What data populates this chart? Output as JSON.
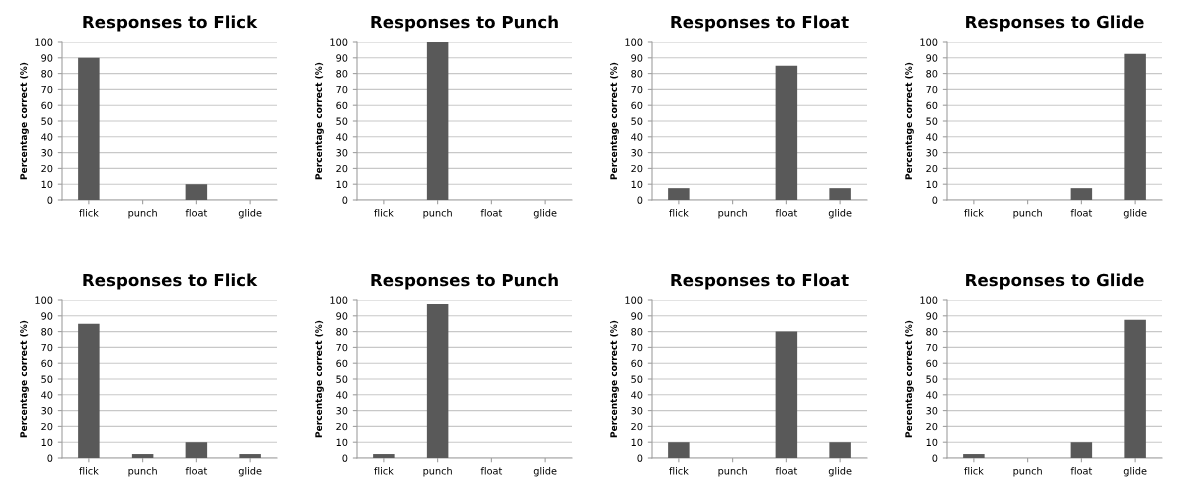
{
  "chart_data": [
    {
      "type": "bar",
      "title": "Responses to Flick",
      "ylabel": "Percentage correct (%)",
      "categories": [
        "flick",
        "punch",
        "float",
        "glide"
      ],
      "values": [
        90,
        0,
        10,
        0
      ],
      "color": "#595959",
      "ylim": [
        0,
        100
      ],
      "yticks": [
        0,
        10,
        20,
        30,
        40,
        50,
        60,
        70,
        80,
        90,
        100
      ],
      "grid": "y"
    },
    {
      "type": "bar",
      "title": "Responses to Punch",
      "ylabel": "Percentage correct (%)",
      "categories": [
        "flick",
        "punch",
        "float",
        "glide"
      ],
      "values": [
        0,
        100,
        0,
        0
      ],
      "color": "#595959",
      "ylim": [
        0,
        100
      ],
      "yticks": [
        0,
        10,
        20,
        30,
        40,
        50,
        60,
        70,
        80,
        90,
        100
      ],
      "grid": "y"
    },
    {
      "type": "bar",
      "title": "Responses to Float",
      "ylabel": "Percentage correct (%)",
      "categories": [
        "flick",
        "punch",
        "float",
        "glide"
      ],
      "values": [
        7.5,
        0,
        85,
        7.5
      ],
      "color": "#595959",
      "ylim": [
        0,
        100
      ],
      "yticks": [
        0,
        10,
        20,
        30,
        40,
        50,
        60,
        70,
        80,
        90,
        100
      ],
      "grid": "y"
    },
    {
      "type": "bar",
      "title": "Responses to Glide",
      "ylabel": "Percentage correct (%)",
      "categories": [
        "flick",
        "punch",
        "float",
        "glide"
      ],
      "values": [
        0,
        0,
        7.5,
        92.5
      ],
      "color": "#595959",
      "ylim": [
        0,
        100
      ],
      "yticks": [
        0,
        10,
        20,
        30,
        40,
        50,
        60,
        70,
        80,
        90,
        100
      ],
      "grid": "y"
    },
    {
      "type": "bar",
      "title": "Responses to Flick",
      "ylabel": "Percentage correct (%)",
      "categories": [
        "flick",
        "punch",
        "float",
        "glide"
      ],
      "values": [
        85,
        2.5,
        10,
        2.5
      ],
      "color": "#595959",
      "ylim": [
        0,
        100
      ],
      "yticks": [
        0,
        10,
        20,
        30,
        40,
        50,
        60,
        70,
        80,
        90,
        100
      ],
      "grid": "y"
    },
    {
      "type": "bar",
      "title": "Responses to Punch",
      "ylabel": "Percentage correct (%)",
      "categories": [
        "flick",
        "punch",
        "float",
        "glide"
      ],
      "values": [
        2.5,
        97.5,
        0,
        0
      ],
      "color": "#595959",
      "ylim": [
        0,
        100
      ],
      "yticks": [
        0,
        10,
        20,
        30,
        40,
        50,
        60,
        70,
        80,
        90,
        100
      ],
      "grid": "y"
    },
    {
      "type": "bar",
      "title": "Responses to Float",
      "ylabel": "Percentage correct (%)",
      "categories": [
        "flick",
        "punch",
        "float",
        "glide"
      ],
      "values": [
        10,
        0,
        80,
        10
      ],
      "color": "#595959",
      "ylim": [
        0,
        100
      ],
      "yticks": [
        0,
        10,
        20,
        30,
        40,
        50,
        60,
        70,
        80,
        90,
        100
      ],
      "grid": "y"
    },
    {
      "type": "bar",
      "title": "Responses to Glide",
      "ylabel": "Percentage correct (%)",
      "categories": [
        "flick",
        "punch",
        "float",
        "glide"
      ],
      "values": [
        2.5,
        0,
        10,
        87.5
      ],
      "color": "#595959",
      "ylim": [
        0,
        100
      ],
      "yticks": [
        0,
        10,
        20,
        30,
        40,
        50,
        60,
        70,
        80,
        90,
        100
      ],
      "grid": "y"
    }
  ]
}
